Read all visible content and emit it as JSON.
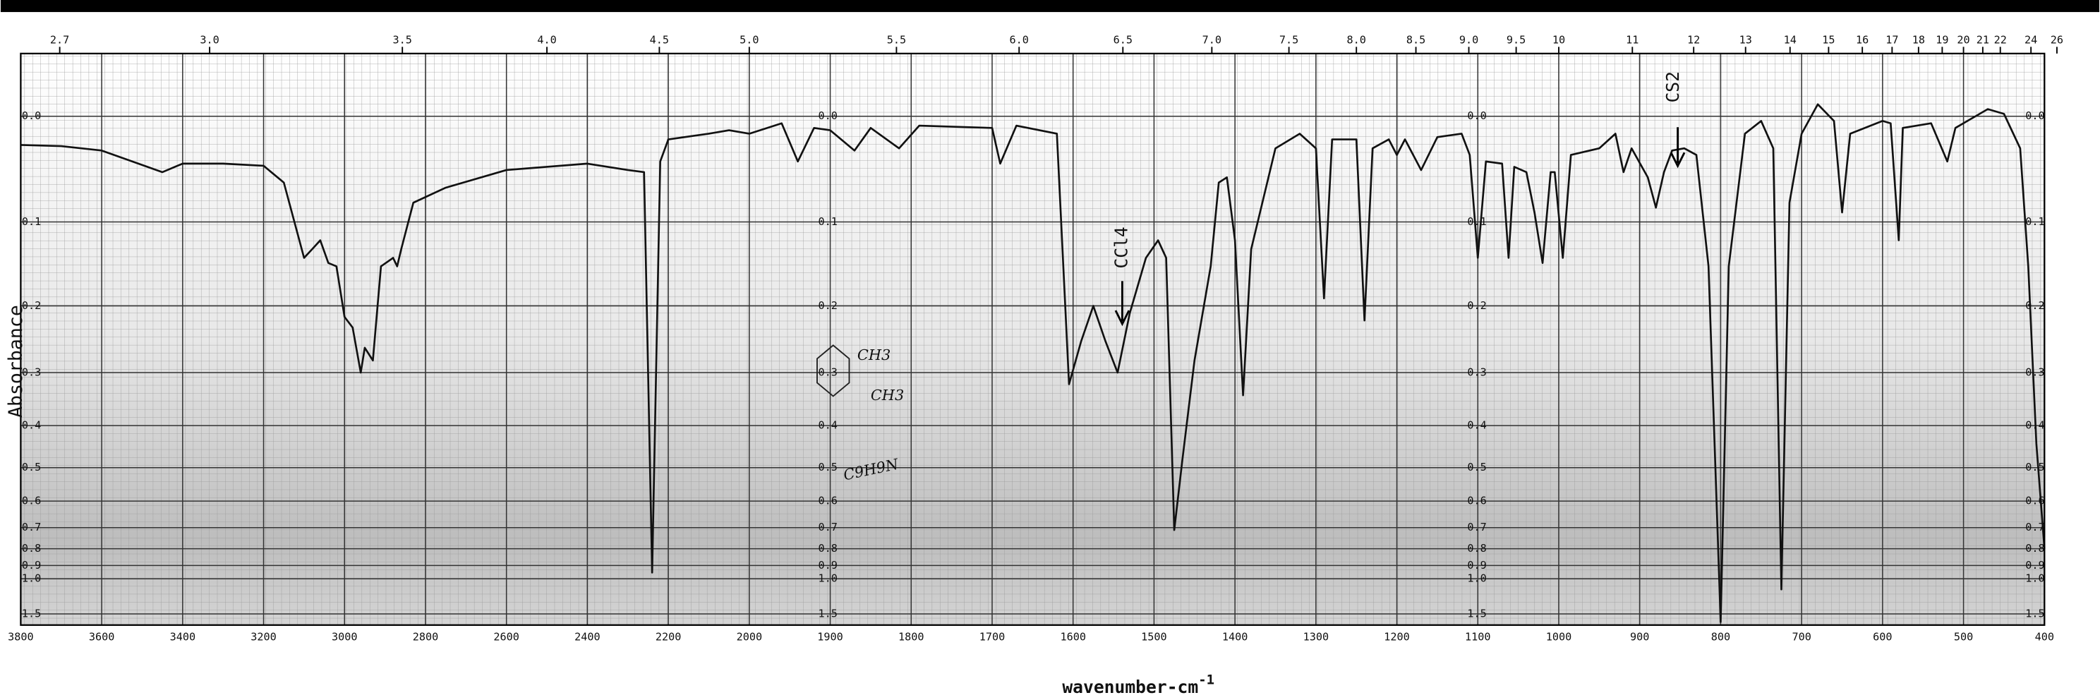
{
  "chart_data": {
    "type": "line",
    "ylabel": "Absorbance",
    "xlabel": "wavenumber-cm",
    "xlabel_sup": "-1",
    "yscale": "transmittance",
    "color": "#111111",
    "grid": true,
    "annotations": [
      "CCl4",
      "CS2",
      "C9H9N",
      "CH3",
      "CH3"
    ],
    "x": [
      3800,
      3700,
      3600,
      3450,
      3400,
      3300,
      3200,
      3150,
      3100,
      3080,
      3060,
      3040,
      3020,
      3000,
      2980,
      2960,
      2950,
      2930,
      2910,
      2880,
      2870,
      2860,
      2830,
      2750,
      2600,
      2400,
      2300,
      2260,
      2240,
      2220,
      2200,
      2100,
      2050,
      2000,
      1960,
      1940,
      1920,
      1900,
      1870,
      1850,
      1815,
      1790,
      1700,
      1690,
      1670,
      1620,
      1605,
      1590,
      1575,
      1560,
      1545,
      1530,
      1510,
      1495,
      1485,
      1475,
      1465,
      1450,
      1430,
      1420,
      1410,
      1400,
      1390,
      1380,
      1350,
      1320,
      1300,
      1290,
      1280,
      1250,
      1240,
      1230,
      1210,
      1200,
      1190,
      1170,
      1150,
      1120,
      1110,
      1100,
      1090,
      1070,
      1062,
      1055,
      1040,
      1030,
      1020,
      1010,
      1005,
      995,
      985,
      950,
      930,
      920,
      910,
      890,
      880,
      870,
      860,
      845,
      830,
      815,
      800,
      790,
      770,
      750,
      735,
      725,
      715,
      700,
      680,
      660,
      650,
      640,
      600,
      590,
      580,
      575,
      540,
      520,
      510,
      470,
      450,
      430,
      420,
      410,
      400
    ],
    "values": [
      0.025,
      0.026,
      0.03,
      0.05,
      0.042,
      0.042,
      0.044,
      0.06,
      0.14,
      0.13,
      0.12,
      0.146,
      0.15,
      0.215,
      0.23,
      0.3,
      0.26,
      0.28,
      0.15,
      0.14,
      0.15,
      0.13,
      0.08,
      0.065,
      0.048,
      0.042,
      0.048,
      0.05,
      0.95,
      0.04,
      0.02,
      0.015,
      0.012,
      0.015,
      0.006,
      0.04,
      0.01,
      0.012,
      0.03,
      0.01,
      0.028,
      0.008,
      0.01,
      0.042,
      0.008,
      0.015,
      0.32,
      0.25,
      0.2,
      0.25,
      0.3,
      0.21,
      0.14,
      0.12,
      0.14,
      0.71,
      0.48,
      0.28,
      0.15,
      0.06,
      0.055,
      0.12,
      0.34,
      0.13,
      0.028,
      0.015,
      0.028,
      0.19,
      0.02,
      0.02,
      0.22,
      0.028,
      0.02,
      0.034,
      0.02,
      0.048,
      0.018,
      0.015,
      0.034,
      0.14,
      0.04,
      0.042,
      0.14,
      0.045,
      0.05,
      0.09,
      0.146,
      0.05,
      0.05,
      0.14,
      0.034,
      0.028,
      0.015,
      0.05,
      0.028,
      0.055,
      0.085,
      0.05,
      0.03,
      0.028,
      0.034,
      0.15,
      1.8,
      0.15,
      0.015,
      0.004,
      0.028,
      1.1,
      0.08,
      0.015,
      -0.01,
      0.004,
      0.09,
      0.015,
      0.004,
      0.006,
      0.12,
      0.01,
      0.006,
      0.04,
      0.01,
      -0.006,
      -0.002,
      0.028,
      0.15,
      0.44,
      0.8
    ],
    "xticks": [
      3800,
      3600,
      3400,
      3200,
      3000,
      2800,
      2600,
      2400,
      2200,
      2000,
      1900,
      1800,
      1700,
      1600,
      1500,
      1400,
      1300,
      1200,
      1100,
      1000,
      900,
      800,
      700,
      600,
      500,
      400
    ],
    "x2ticks": [
      2.7,
      {
        "value": 3,
        "label": "3.0"
      },
      3.5,
      {
        "value": 4,
        "label": "4.0"
      },
      4.5,
      {
        "value": 5,
        "label": "5.0"
      },
      5.5,
      {
        "value": 6,
        "label": "6.0"
      },
      6.5,
      {
        "value": 7,
        "label": "7.0"
      },
      7.5,
      {
        "value": 8,
        "label": "8.0"
      },
      8.5,
      {
        "value": 9,
        "label": "9.0"
      },
      9.5,
      10,
      11,
      12,
      13,
      14,
      15,
      16,
      17,
      18,
      19,
      20,
      21,
      22,
      24,
      26
    ],
    "ylim": [
      -0.05,
      2
    ],
    "yticks": [
      {
        "value": 0,
        "label": "0.0"
      },
      0.1,
      0.2,
      0.3,
      0.4,
      0.5,
      0.6,
      0.7,
      0.8,
      0.9,
      {
        "value": 1,
        "label": "1.0"
      },
      1.5
    ]
  }
}
